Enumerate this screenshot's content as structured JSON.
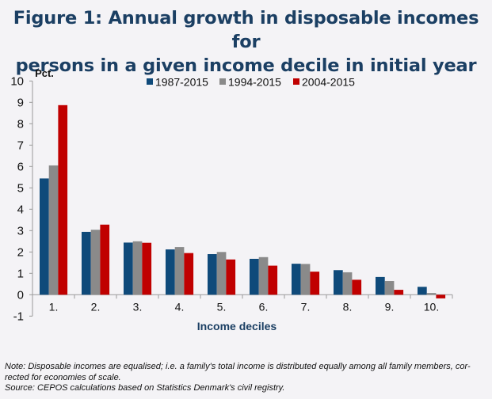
{
  "chart_data": {
    "type": "bar",
    "title": "Figure 1: Annual growth in disposable incomes for persons in a given income decile in initial year",
    "title_lines": [
      "Figure 1: Annual growth in disposable incomes for",
      "persons in a given income decile in initial year"
    ],
    "ylabel": "Pct.",
    "xlabel": "Income deciles",
    "ylim": [
      -1,
      10
    ],
    "yticks": [
      10,
      9,
      8,
      7,
      6,
      5,
      4,
      3,
      2,
      1,
      0,
      -1
    ],
    "grid": false,
    "legend_position": "top-center",
    "categories": [
      "1.",
      "2.",
      "3.",
      "4.",
      "5.",
      "6.",
      "7.",
      "8.",
      "9.",
      "10."
    ],
    "series": [
      {
        "name": "1987-2015",
        "color": "#0f4a7a",
        "values": [
          5.44,
          2.94,
          2.44,
          2.12,
          1.9,
          1.68,
          1.45,
          1.15,
          0.83,
          0.37
        ]
      },
      {
        "name": "1994-2015",
        "color": "#8a8a8a",
        "values": [
          6.05,
          3.04,
          2.5,
          2.23,
          2.0,
          1.76,
          1.44,
          1.05,
          0.64,
          0.08
        ]
      },
      {
        "name": "2004-2015",
        "color": "#c00000",
        "values": [
          8.87,
          3.28,
          2.43,
          1.95,
          1.65,
          1.36,
          1.08,
          0.7,
          0.23,
          -0.17
        ]
      }
    ]
  },
  "notes": {
    "note_line1": "Note: Disposable incomes are equalised; i.e. a family's total income is distributed equally among all family members, cor-",
    "note_line2": "rected for economies of scale.",
    "source": "Source: CEPOS calculations based on Statistics Denmark's civil registry."
  }
}
